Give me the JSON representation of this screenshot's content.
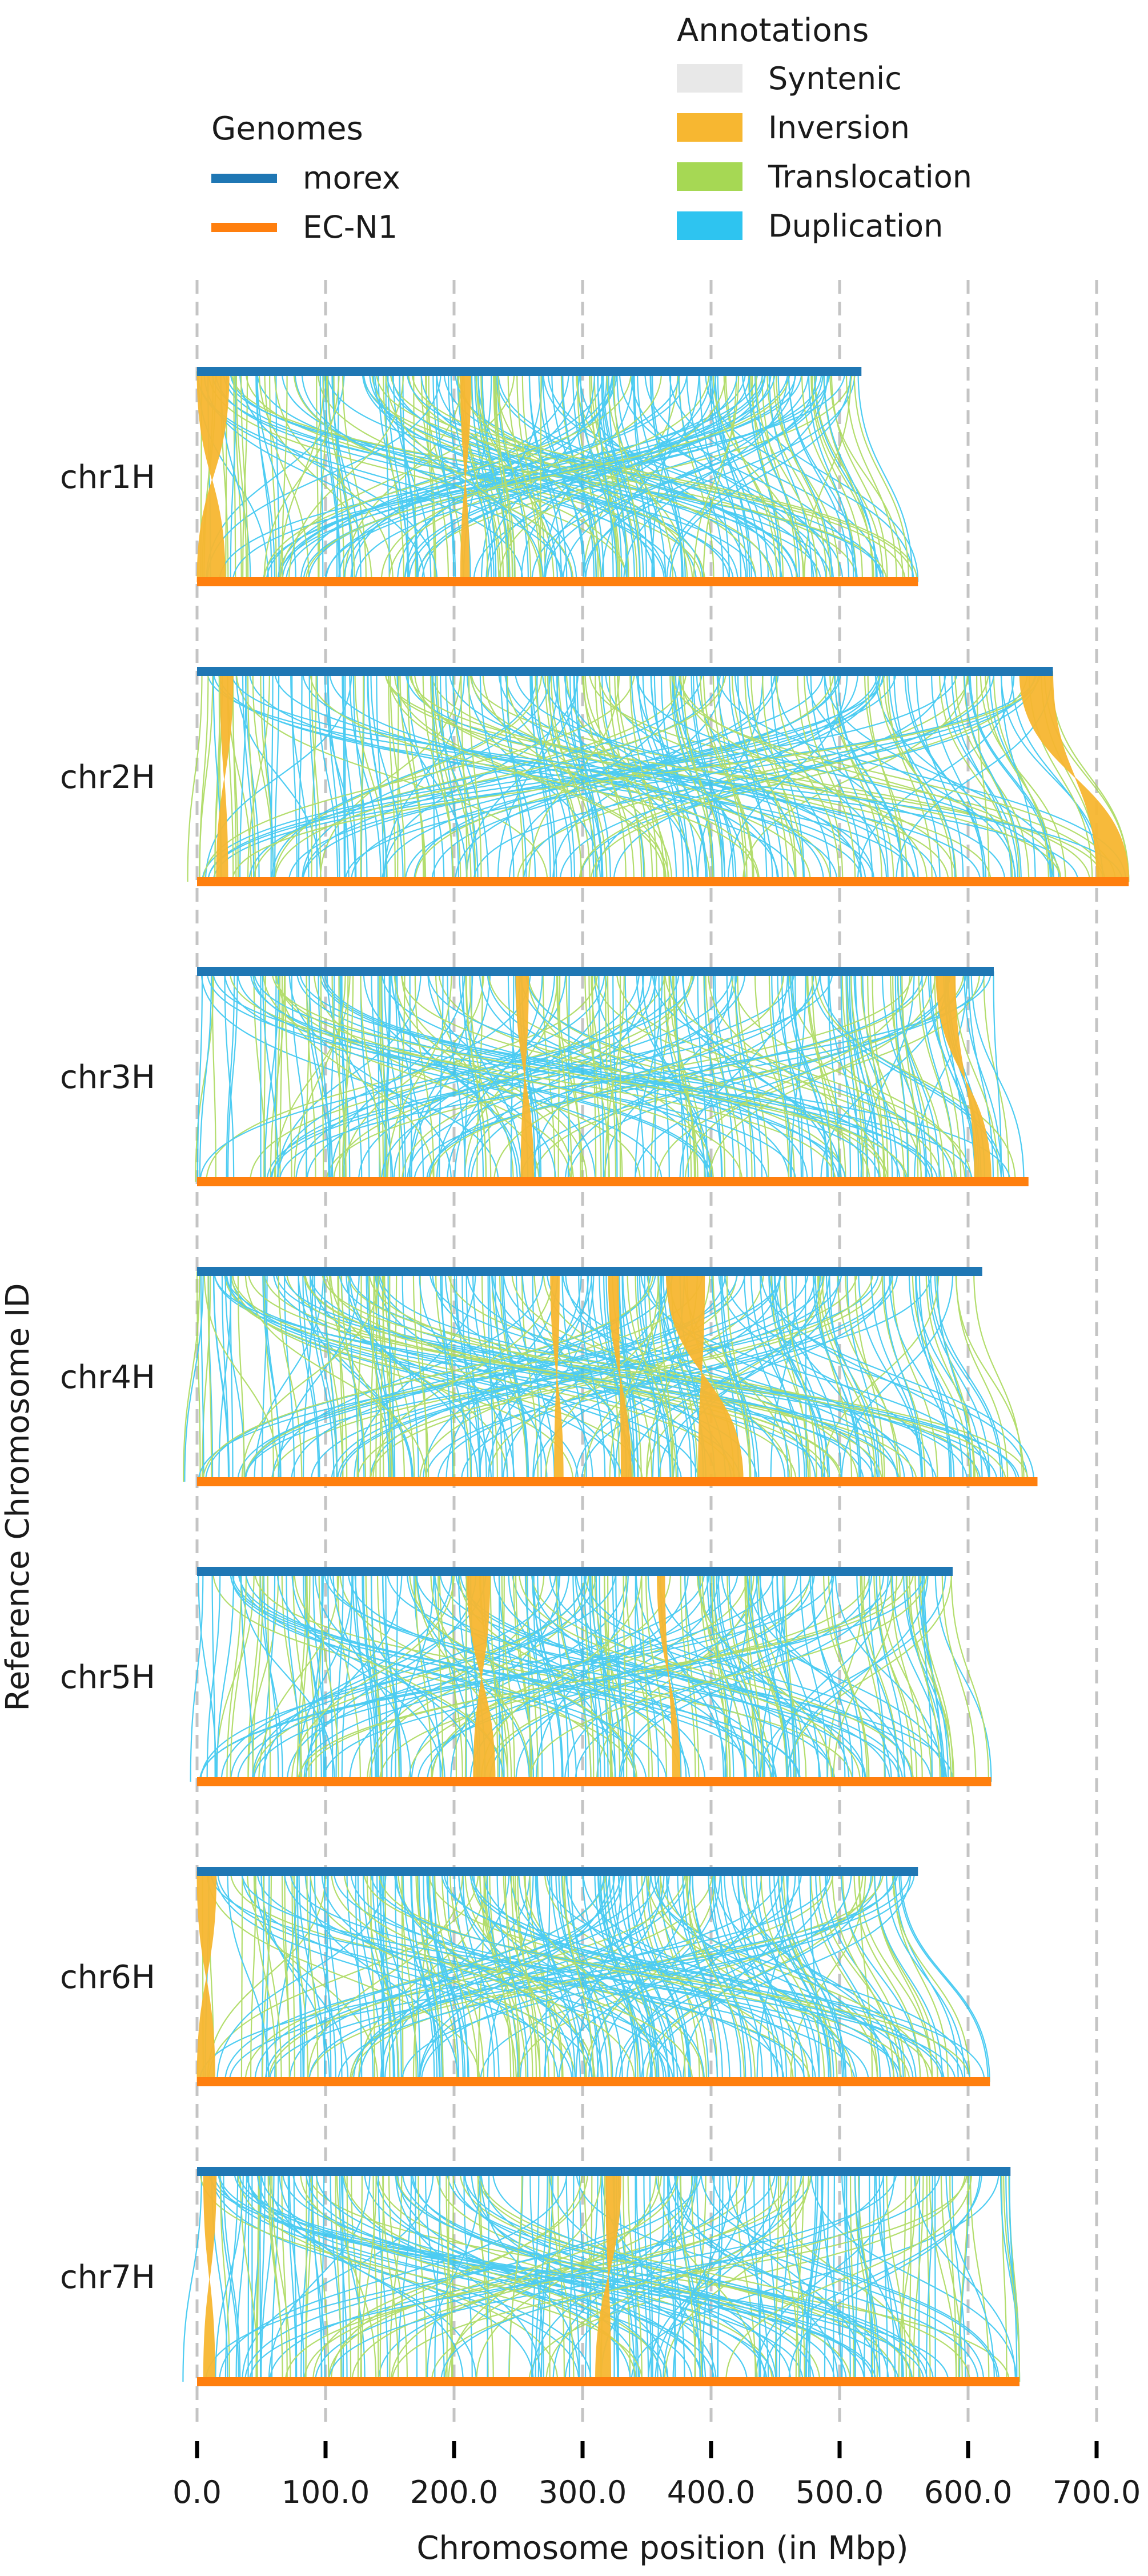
{
  "chart_data": {
    "type": "synteny",
    "xlabel": "Chromosome position (in Mbp)",
    "ylabel": "Reference Chromosome ID",
    "xlim": [
      0,
      700
    ],
    "x_ticks": [
      0,
      100,
      200,
      300,
      400,
      500,
      600,
      700
    ],
    "x_tick_labels": [
      "0.0",
      "100.0",
      "200.0",
      "300.0",
      "400.0",
      "500.0",
      "600.0",
      "700.0"
    ],
    "grid": "vertical dashed",
    "legends": {
      "genomes": {
        "title": "Genomes",
        "placement": "top-left",
        "items": [
          {
            "name": "morex",
            "color": "#1f77b4"
          },
          {
            "name": "EC-N1",
            "color": "#ff7f0e"
          }
        ]
      },
      "annotations": {
        "title": "Annotations",
        "placement": "top-right",
        "items": [
          {
            "name": "Syntenic",
            "color": "#e8e8e8"
          },
          {
            "name": "Inversion",
            "color": "#f7b731"
          },
          {
            "name": "Translocation",
            "color": "#a6d854"
          },
          {
            "name": "Duplication",
            "color": "#2ec4f0"
          }
        ]
      }
    },
    "chromosomes": [
      {
        "id": "chr1H",
        "ref_length": 517,
        "qry_length": 561,
        "inversions": [
          {
            "ref": [
              0,
              25
            ],
            "qry": [
              0,
              22
            ]
          },
          {
            "ref": [
              205,
              213
            ],
            "qry": [
              205,
              212
            ]
          }
        ]
      },
      {
        "id": "chr2H",
        "ref_length": 666,
        "qry_length": 725,
        "inversions": [
          {
            "ref": [
              18,
              28
            ],
            "qry": [
              15,
              24
            ]
          },
          {
            "ref": [
              640,
              666
            ],
            "qry": [
              700,
              725
            ]
          }
        ]
      },
      {
        "id": "chr3H",
        "ref_length": 620,
        "qry_length": 647,
        "inversions": [
          {
            "ref": [
              248,
              258
            ],
            "qry": [
              252,
              262
            ]
          },
          {
            "ref": [
              575,
              590
            ],
            "qry": [
              605,
              618
            ]
          }
        ]
      },
      {
        "id": "chr4H",
        "ref_length": 611,
        "qry_length": 654,
        "inversions": [
          {
            "ref": [
              365,
              395
            ],
            "qry": [
              390,
              425
            ]
          },
          {
            "ref": [
              275,
              282
            ],
            "qry": [
              278,
              285
            ]
          },
          {
            "ref": [
              320,
              328
            ],
            "qry": [
              330,
              338
            ]
          }
        ]
      },
      {
        "id": "chr5H",
        "ref_length": 588,
        "qry_length": 618,
        "inversions": [
          {
            "ref": [
              210,
              228
            ],
            "qry": [
              215,
              232
            ]
          },
          {
            "ref": [
              358,
              364
            ],
            "qry": [
              370,
              376
            ]
          }
        ]
      },
      {
        "id": "chr6H",
        "ref_length": 561,
        "qry_length": 617,
        "inversions": [
          {
            "ref": [
              0,
              15
            ],
            "qry": [
              0,
              14
            ]
          }
        ]
      },
      {
        "id": "chr7H",
        "ref_length": 633,
        "qry_length": 640,
        "inversions": [
          {
            "ref": [
              318,
              330
            ],
            "qry": [
              310,
              322
            ]
          },
          {
            "ref": [
              5,
              15
            ],
            "qry": [
              5,
              14
            ]
          }
        ]
      }
    ]
  }
}
